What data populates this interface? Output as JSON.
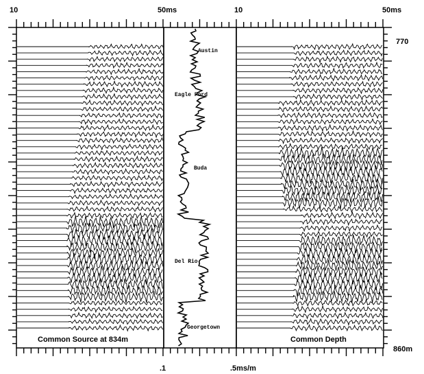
{
  "top_axis": {
    "left_start": "10",
    "left_end": "50ms",
    "right_start": "10",
    "right_end": "50ms"
  },
  "bottom_axis": {
    "start": ".1",
    "end": ".5ms/m"
  },
  "depth_axis": {
    "top": "770",
    "bottom": "860m"
  },
  "panels": {
    "left_caption": "Common Source at 834m",
    "right_caption": "Common Depth"
  },
  "formations": [
    "Austin",
    "Eagle Ford",
    "Buda",
    "Del Rio",
    "Georgetown"
  ]
}
